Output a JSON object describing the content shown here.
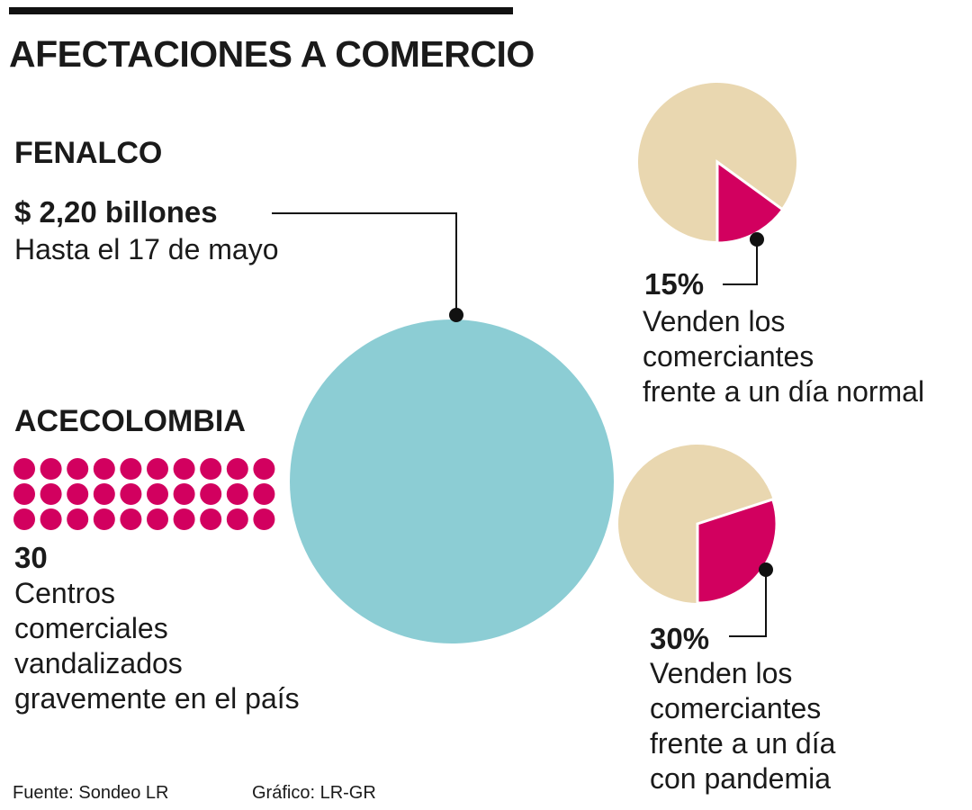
{
  "title": "AFECTACIONES A COMERCIO",
  "fenalco": {
    "heading": "FENALCO",
    "value": "$ 2,20 billones",
    "detail": "Hasta el 17 de mayo"
  },
  "acecolombia": {
    "heading": "ACECOLOMBIA",
    "count": "30",
    "description": "Centros\ncomerciales\nvandalizados\ngravemente en el país",
    "dots": 30
  },
  "pie_normal": {
    "label": "15%",
    "description": "Venden los\ncomerciantes\nfrente a un día normal"
  },
  "pie_pandemia": {
    "label": "30%",
    "description": "Venden los\ncomerciantes\nfrente a un día\ncon pandemia"
  },
  "footer": {
    "source": "Fuente: Sondeo LR",
    "credit": "Gráfico: LR-GR"
  },
  "colors": {
    "teal": "#8ccdd4",
    "beige": "#e9d7b0",
    "magenta": "#d2005f",
    "ink": "#111111"
  },
  "chart_data": [
    {
      "type": "pie",
      "series": [
        {
          "values": [
            85,
            15
          ]
        }
      ],
      "highlight_value": 15,
      "text_label": "15%"
    },
    {
      "type": "pie",
      "series": [
        {
          "values": [
            70,
            30
          ]
        }
      ],
      "highlight_value": 30,
      "text_label": "30%"
    }
  ]
}
